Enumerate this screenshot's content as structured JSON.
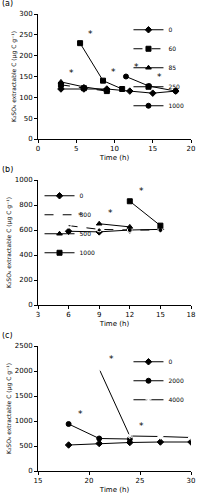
{
  "chart_data": [
    {
      "type": "line",
      "title": "(a)",
      "x_label": "Time (h)",
      "y_label": "K₂SO₄ extractable C (µg C g⁻¹)",
      "xlim": [
        0,
        20
      ],
      "xticks": [
        0,
        5,
        10,
        15,
        20
      ],
      "ylim": [
        0,
        300
      ],
      "yticks": [
        0,
        50,
        100,
        150,
        200,
        250,
        300
      ],
      "legend": "upper right",
      "series": [
        {
          "name": "0",
          "color": "#000000",
          "marker": "diamond",
          "line_style": "solid",
          "x": [
            3,
            6,
            9,
            12,
            15,
            18
          ],
          "values": [
            120,
            120,
            120,
            115,
            110,
            115
          ]
        },
        {
          "name": "60",
          "color": "#000000",
          "marker": "square",
          "line_style": "dashed",
          "x": [
            3,
            6,
            9
          ],
          "values": [
            130,
            122,
            115
          ]
        },
        {
          "name": "85",
          "color": "#000000",
          "marker": "triangle",
          "line_style": "solid",
          "x": [
            3,
            6,
            9
          ],
          "values": [
            137,
            125,
            117
          ]
        },
        {
          "name": "250",
          "color": "#000000",
          "marker": "square",
          "line_style": "solid",
          "x": [
            5.5,
            8.5,
            11
          ],
          "values": [
            230,
            140,
            120
          ]
        },
        {
          "name": "1000",
          "color": "#000000",
          "marker": "circle",
          "line_style": "solid",
          "x": [
            11.5,
            14.5,
            18
          ],
          "values": [
            150,
            127,
            115
          ]
        }
      ],
      "annotations": [
        {
          "x": 6.3,
          "y": 235,
          "text": "*"
        },
        {
          "x": 9.3,
          "y": 145,
          "text": "*"
        },
        {
          "x": 12.3,
          "y": 155,
          "text": "*"
        },
        {
          "x": 15.3,
          "y": 132,
          "text": "*"
        },
        {
          "x": 3.8,
          "y": 142,
          "text": "*"
        }
      ]
    },
    {
      "type": "line",
      "title": "(b)",
      "x_label": "Time (h)",
      "y_label": "K₂SO₄ extractable C (µg C g⁻¹)",
      "xlim": [
        3,
        18
      ],
      "xticks": [
        3,
        6,
        9,
        12,
        15,
        18
      ],
      "ylim": [
        0,
        1000
      ],
      "yticks": [
        0,
        200,
        400,
        600,
        800,
        1000
      ],
      "legend": "upper left",
      "series": [
        {
          "name": "0",
          "color": "#000000",
          "marker": "diamond",
          "line_style": "solid",
          "x": [
            6,
            9,
            12,
            15
          ],
          "values": [
            590,
            585,
            600,
            605
          ]
        },
        {
          "name": "300",
          "color": "#000000",
          "marker": "open circle",
          "line_style": "dashed",
          "x": [
            6,
            9,
            12,
            15
          ],
          "values": [
            635,
            605,
            600,
            600
          ]
        },
        {
          "name": "500",
          "color": "#000000",
          "marker": "triangle",
          "line_style": "solid",
          "x": [
            9,
            12
          ],
          "values": [
            650,
            625
          ]
        },
        {
          "name": "1000",
          "color": "#000000",
          "marker": "square",
          "line_style": "solid",
          "x": [
            12,
            15
          ],
          "values": [
            830,
            635
          ]
        }
      ],
      "annotations": [
        {
          "x": 6.7,
          "y": 660,
          "text": "*"
        },
        {
          "x": 9.7,
          "y": 680,
          "text": "*"
        },
        {
          "x": 12.7,
          "y": 860,
          "text": "*"
        }
      ]
    },
    {
      "type": "line",
      "title": "(c)",
      "x_label": "Time (h)",
      "y_label": "K₂SO₄ extractable C (µg C g⁻¹)",
      "xlim": [
        15,
        30
      ],
      "xticks": [
        15,
        20,
        25,
        30
      ],
      "ylim": [
        0,
        2500
      ],
      "yticks": [
        0,
        500,
        1000,
        1500,
        2000,
        2500
      ],
      "legend": "upper right",
      "series": [
        {
          "name": "0",
          "color": "#000000",
          "marker": "diamond",
          "line_style": "solid",
          "x": [
            18,
            21,
            24,
            27,
            30
          ],
          "values": [
            520,
            550,
            570,
            580,
            580
          ]
        },
        {
          "name": "2000",
          "color": "#000000",
          "marker": "circle",
          "line_style": "solid",
          "x": [
            18,
            21,
            24
          ],
          "values": [
            940,
            650,
            640
          ]
        },
        {
          "name": "4000",
          "color": "#000000",
          "marker": "asterisk",
          "line_style": "solid",
          "x": [
            21,
            24,
            27,
            30
          ],
          "values": [
            2040,
            700,
            690,
            670
          ]
        }
      ],
      "annotations": [
        {
          "x": 18.7,
          "y": 1000,
          "text": "*"
        },
        {
          "x": 21.8,
          "y": 2100,
          "text": "*"
        },
        {
          "x": 24.7,
          "y": 760,
          "text": "*"
        }
      ]
    }
  ]
}
